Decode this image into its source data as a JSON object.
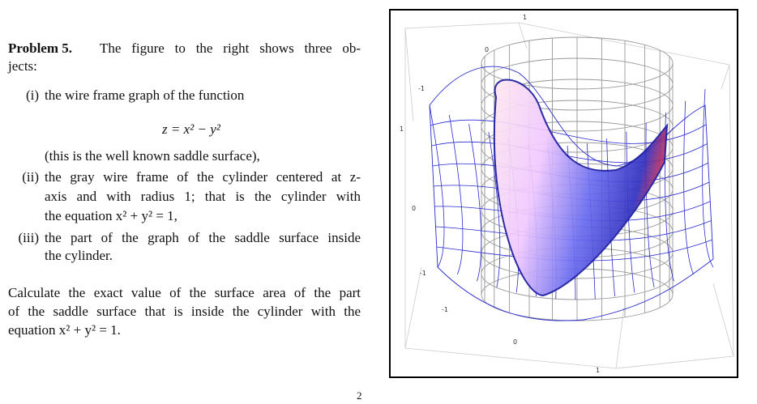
{
  "problem": {
    "label": "Problem 5.",
    "intro_lines": [
      "The figure to the right shows three ob-",
      "jects:"
    ],
    "items": [
      {
        "marker": "(i)",
        "lines": [
          "the wire frame graph of the function"
        ],
        "equation": "z = x² − y²",
        "after": "(this is the well known saddle surface),"
      },
      {
        "marker": "(ii)",
        "lines": [
          "the gray wire frame of the cylinder centered at z-",
          "axis and with radius 1; that is the cylinder with",
          "the equation x² + y² = 1,"
        ]
      },
      {
        "marker": "(iii)",
        "lines": [
          "the part of the graph of the saddle surface inside",
          "the cylinder."
        ]
      }
    ],
    "question_lines": [
      "Calculate the exact value of the surface area of the part",
      "of the saddle surface that is inside the cylinder with the",
      "equation x² + y² = 1."
    ],
    "page_fragment": "2"
  },
  "figure": {
    "tick_labels": [
      "1",
      "0",
      "-1",
      "1",
      "0",
      "-1",
      "-1",
      "0",
      "1"
    ]
  }
}
